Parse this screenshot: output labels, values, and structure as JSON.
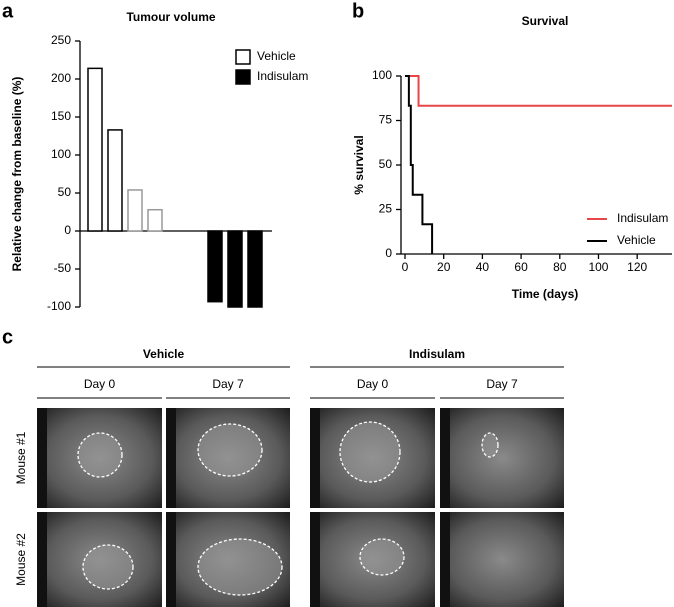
{
  "panels": [
    "a",
    "b",
    "c"
  ],
  "chart_data": [
    {
      "type": "bar",
      "title": "Tumour volume",
      "ylabel": "Relative change from baseline (%)",
      "categories": [
        null,
        null,
        null,
        null,
        null,
        null,
        null,
        null,
        null
      ],
      "series": [
        {
          "name": "Vehicle",
          "color": "#ffffff",
          "edgecolors": [
            "#000000",
            "#000000",
            "#999999",
            "#999999",
            null,
            null,
            null,
            null,
            null
          ],
          "values": [
            214,
            133,
            54,
            28,
            null,
            null,
            null,
            null,
            null
          ]
        },
        {
          "name": "Indisulam",
          "color": "#000000",
          "edgecolors": [
            null,
            null,
            null,
            null,
            null,
            null,
            "#000000",
            "#000000",
            "#000000"
          ],
          "values": [
            null,
            null,
            null,
            null,
            null,
            null,
            -93,
            -100,
            -100
          ]
        }
      ],
      "ylim": [
        -100,
        250
      ],
      "yticks": [
        -100,
        -50,
        0,
        50,
        100,
        150,
        200,
        250
      ],
      "legend": "upper right"
    },
    {
      "type": "line",
      "drawstyle": "steps-post",
      "title": "Survival",
      "xlabel": "Time (days)",
      "ylabel": "% survival",
      "series": [
        {
          "name": "Indisulam",
          "color": "#e8474a",
          "x": [
            0,
            7,
            138
          ],
          "values": [
            100,
            83.3,
            83.3
          ]
        },
        {
          "name": "Vehicle",
          "color": "#000000",
          "x": [
            0,
            2,
            3,
            4,
            9,
            14
          ],
          "values": [
            100,
            83.3,
            50,
            33.3,
            16.7,
            0
          ]
        }
      ],
      "xlim": [
        0,
        138
      ],
      "xticks": [
        0,
        20,
        40,
        60,
        80,
        100,
        120
      ],
      "ylim": [
        0,
        100
      ],
      "yticks": [
        0,
        25,
        50,
        75,
        100
      ],
      "legend": "lower right"
    }
  ],
  "imaging": {
    "groups": [
      {
        "name": "Vehicle",
        "days": [
          "Day 0",
          "Day 7"
        ]
      },
      {
        "name": "Indisulam",
        "days": [
          "Day 0",
          "Day 7"
        ]
      }
    ],
    "rows": [
      "Mouse #1",
      "Mouse #2"
    ]
  }
}
